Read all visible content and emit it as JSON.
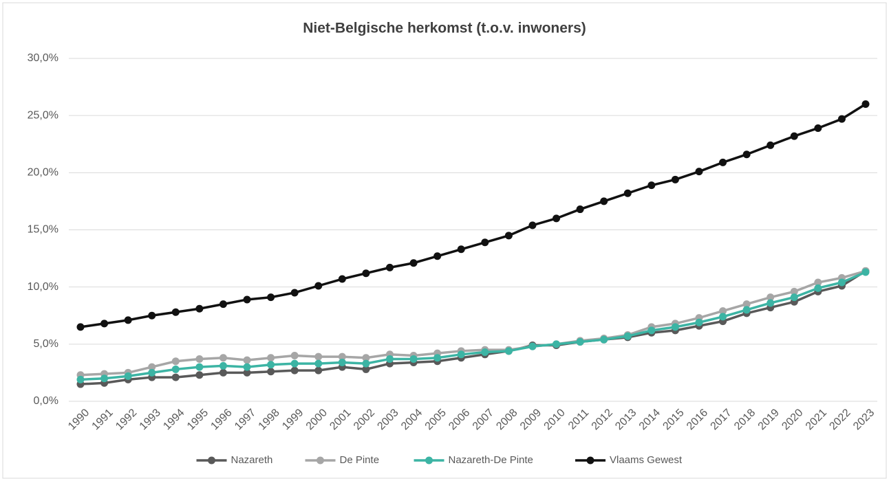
{
  "chart_data": {
    "type": "line",
    "title": "Niet-Belgische herkomst (t.o.v. inwoners)",
    "categories": [
      "1990",
      "1991",
      "1992",
      "1993",
      "1994",
      "1995",
      "1996",
      "1997",
      "1998",
      "1999",
      "2000",
      "2001",
      "2002",
      "2003",
      "2004",
      "2005",
      "2006",
      "2007",
      "2008",
      "2009",
      "2010",
      "2011",
      "2012",
      "2013",
      "2014",
      "2015",
      "2016",
      "2017",
      "2018",
      "2019",
      "2020",
      "2021",
      "2022",
      "2023"
    ],
    "series": [
      {
        "name": "Nazareth",
        "color": "#595959",
        "values": [
          1.5,
          1.6,
          1.9,
          2.1,
          2.1,
          2.3,
          2.5,
          2.5,
          2.6,
          2.7,
          2.7,
          3.0,
          2.8,
          3.3,
          3.4,
          3.5,
          3.8,
          4.1,
          4.4,
          4.9,
          4.9,
          5.2,
          5.4,
          5.6,
          6.0,
          6.2,
          6.6,
          7.0,
          7.7,
          8.2,
          8.7,
          9.6,
          10.1,
          11.4
        ]
      },
      {
        "name": "De Pinte",
        "color": "#a6a6a6",
        "values": [
          2.3,
          2.4,
          2.5,
          3.0,
          3.5,
          3.7,
          3.8,
          3.6,
          3.8,
          4.0,
          3.9,
          3.9,
          3.8,
          4.1,
          4.0,
          4.2,
          4.4,
          4.5,
          4.5,
          4.8,
          5.0,
          5.3,
          5.5,
          5.8,
          6.5,
          6.8,
          7.3,
          7.9,
          8.5,
          9.1,
          9.6,
          10.4,
          10.8,
          11.4
        ]
      },
      {
        "name": "Nazareth-De Pinte",
        "color": "#3cb4a4",
        "values": [
          1.9,
          2.0,
          2.2,
          2.5,
          2.8,
          3.0,
          3.1,
          3.0,
          3.2,
          3.3,
          3.3,
          3.4,
          3.3,
          3.7,
          3.7,
          3.8,
          4.1,
          4.3,
          4.4,
          4.8,
          5.0,
          5.2,
          5.4,
          5.7,
          6.2,
          6.5,
          6.9,
          7.4,
          8.0,
          8.6,
          9.1,
          9.9,
          10.4,
          11.3
        ]
      },
      {
        "name": "Vlaams Gewest",
        "color": "#111111",
        "values": [
          6.5,
          6.8,
          7.1,
          7.5,
          7.8,
          8.1,
          8.5,
          8.9,
          9.1,
          9.5,
          10.1,
          10.7,
          11.2,
          11.7,
          12.1,
          12.7,
          13.3,
          13.9,
          14.5,
          15.4,
          16.0,
          16.8,
          17.5,
          18.2,
          18.9,
          19.4,
          20.1,
          20.9,
          21.6,
          22.4,
          23.2,
          23.9,
          24.7,
          26.0
        ]
      }
    ],
    "ylim": [
      0,
      30
    ],
    "yticks": [
      {
        "value": 0,
        "label": "0,0%"
      },
      {
        "value": 5,
        "label": "5,0%"
      },
      {
        "value": 10,
        "label": "10,0%"
      },
      {
        "value": 15,
        "label": "15,0%"
      },
      {
        "value": 20,
        "label": "20,0%"
      },
      {
        "value": 25,
        "label": "25,0%"
      },
      {
        "value": 30,
        "label": "30,0%"
      }
    ],
    "grid": true,
    "legend": "bottom"
  }
}
